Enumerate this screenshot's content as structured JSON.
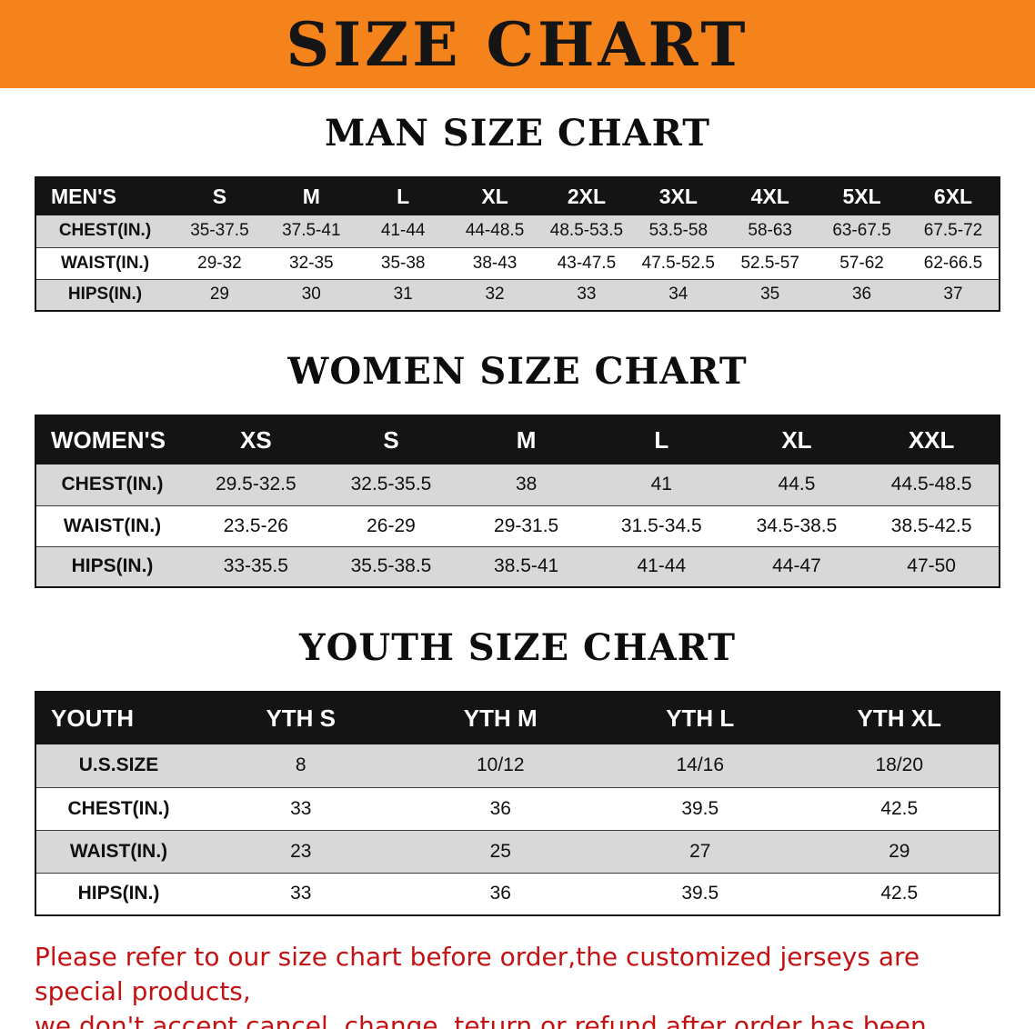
{
  "banner": {
    "title": "SIZE CHART",
    "bg_color": "#F5831C",
    "text_color": "#151515"
  },
  "sections": [
    {
      "heading": "MAN SIZE CHART",
      "table": {
        "header": [
          "MEN'S",
          "S",
          "M",
          "L",
          "XL",
          "2XL",
          "3XL",
          "4XL",
          "5XL",
          "6XL"
        ],
        "rows": [
          [
            "CHEST(IN.)",
            "35-37.5",
            "37.5-41",
            "41-44",
            "44-48.5",
            "48.5-53.5",
            "53.5-58",
            "58-63",
            "63-67.5",
            "67.5-72"
          ],
          [
            "WAIST(IN.)",
            "29-32",
            "32-35",
            "35-38",
            "38-43",
            "43-47.5",
            "47.5-52.5",
            "52.5-57",
            "57-62",
            "62-66.5"
          ],
          [
            "HIPS(IN.)",
            "29",
            "30",
            "31",
            "32",
            "33",
            "34",
            "35",
            "36",
            "37"
          ]
        ]
      }
    },
    {
      "heading": "WOMEN SIZE CHART",
      "table": {
        "header": [
          "WOMEN'S",
          "XS",
          "S",
          "M",
          "L",
          "XL",
          "XXL"
        ],
        "rows": [
          [
            "CHEST(IN.)",
            "29.5-32.5",
            "32.5-35.5",
            "38",
            "41",
            "44.5",
            "44.5-48.5"
          ],
          [
            "WAIST(IN.)",
            "23.5-26",
            "26-29",
            "29-31.5",
            "31.5-34.5",
            "34.5-38.5",
            "38.5-42.5"
          ],
          [
            "HIPS(IN.)",
            "33-35.5",
            "35.5-38.5",
            "38.5-41",
            "41-44",
            "44-47",
            "47-50"
          ]
        ]
      }
    },
    {
      "heading": "YOUTH SIZE CHART",
      "table": {
        "header": [
          "YOUTH",
          "YTH S",
          "YTH M",
          "YTH L",
          "YTH XL"
        ],
        "rows": [
          [
            "U.S.SIZE",
            "8",
            "10/12",
            "14/16",
            "18/20"
          ],
          [
            "CHEST(IN.)",
            "33",
            "36",
            "39.5",
            "42.5"
          ],
          [
            "WAIST(IN.)",
            "23",
            "25",
            "27",
            "29"
          ],
          [
            "HIPS(IN.)",
            "33",
            "36",
            "39.5",
            "42.5"
          ]
        ]
      }
    }
  ],
  "disclaimer": {
    "color": "#C41212",
    "lines": [
      "Please refer to our size chart before order,the customized jerseys are special products,",
      "we don't accept cancel, change, teturn or refund after order has been placed!"
    ]
  }
}
